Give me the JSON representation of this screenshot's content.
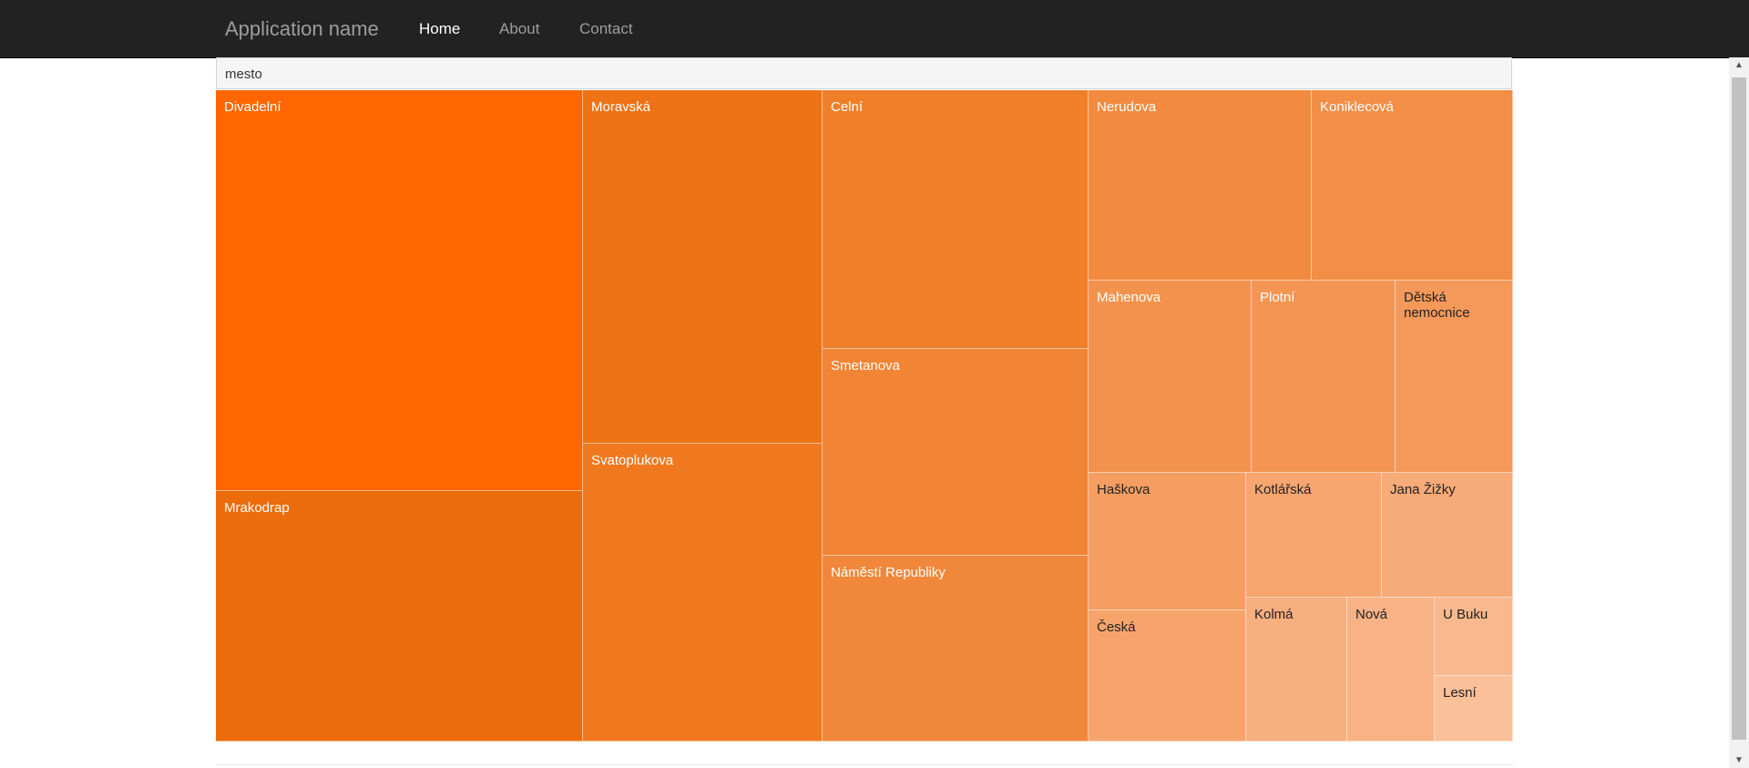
{
  "navbar": {
    "brand": "Application name",
    "links": [
      {
        "label": "Home",
        "active": true
      },
      {
        "label": "About",
        "active": false
      },
      {
        "label": "Contact",
        "active": false
      }
    ]
  },
  "header": {
    "label": "mesto"
  },
  "colors": {
    "navbar_bg": "#222222",
    "accent": "#ff6600"
  },
  "chart_data": {
    "type": "treemap",
    "root": "mesto",
    "items": [
      {
        "name": "Divadelní",
        "color": "#ff6600"
      },
      {
        "name": "Mrakodrap",
        "color": "#ec6c0b"
      },
      {
        "name": "Moravská",
        "color": "#ee7315"
      },
      {
        "name": "Svatoplukova",
        "color": "#f07920"
      },
      {
        "name": "Celní",
        "color": "#f07f2a"
      },
      {
        "name": "Smetanova",
        "color": "#f18534"
      },
      {
        "name": "Náměstí Republiky",
        "color": "#f1873a"
      },
      {
        "name": "Nerudova",
        "color": "#f28a3f"
      },
      {
        "name": "Koniklecová",
        "color": "#f28e45"
      },
      {
        "name": "Mahenova",
        "color": "#f3924c"
      },
      {
        "name": "Plotní",
        "color": "#f49553"
      },
      {
        "name": "Dětská nemocnice",
        "color": "#f4995a"
      },
      {
        "name": "Haškova",
        "color": "#f59e62"
      },
      {
        "name": "Česká",
        "color": "#f6a46c"
      },
      {
        "name": "Kotlářská",
        "color": "#f7a670"
      },
      {
        "name": "Jana Žižky",
        "color": "#f7ab78"
      },
      {
        "name": "Kolmá",
        "color": "#f8af7f"
      },
      {
        "name": "Nová",
        "color": "#f8b285"
      },
      {
        "name": "U Buku",
        "color": "#f9b88e"
      },
      {
        "name": "Lesní",
        "color": "#fac09a"
      }
    ]
  }
}
